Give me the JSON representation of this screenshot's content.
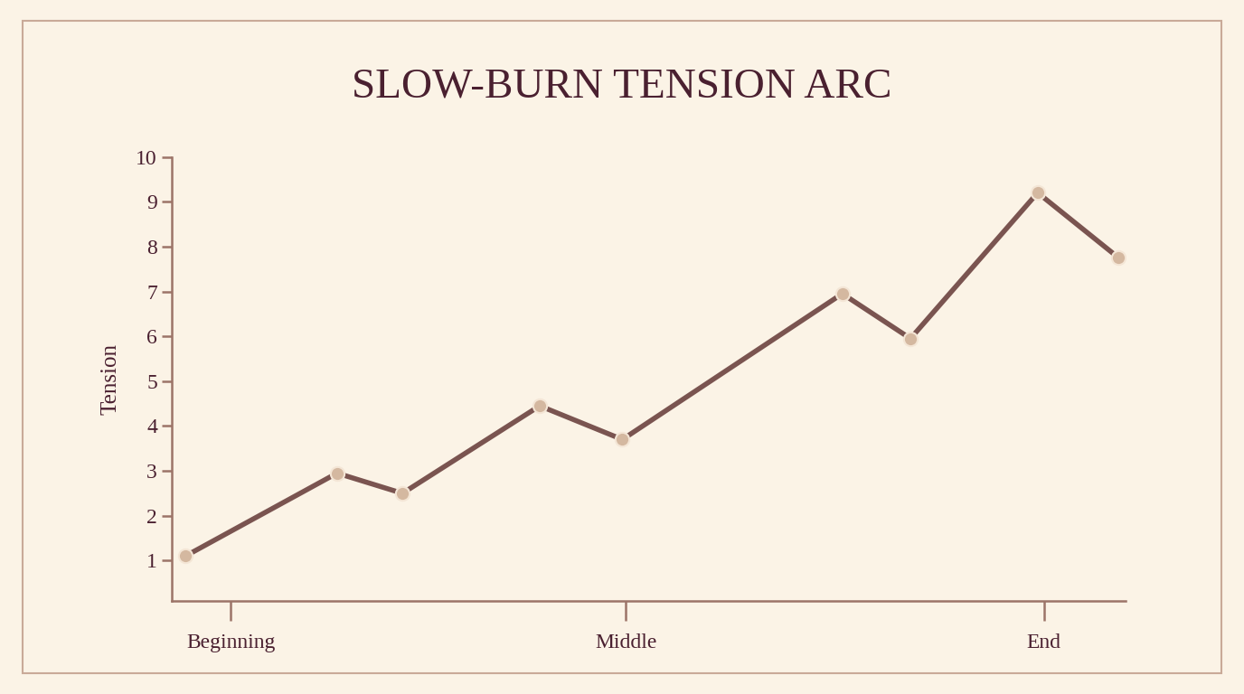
{
  "chart_data": {
    "type": "line",
    "title": "SLOW-BURN TENSION ARC",
    "y_label": "Tension",
    "x": [
      0.15,
      1.82,
      2.54,
      4.05,
      4.96,
      7.38,
      8.13,
      9.53,
      10.42
    ],
    "values": [
      1.1,
      2.95,
      2.5,
      4.45,
      3.7,
      6.95,
      5.95,
      9.2,
      7.75
    ],
    "color": "#7a5450",
    "marker": "circle",
    "line_style": "solid",
    "xlim": [
      0,
      10.5
    ],
    "xticks": [
      {
        "value": 0.65,
        "label": "Beginning"
      },
      {
        "value": 5,
        "label": "Middle"
      },
      {
        "value": 9.6,
        "label": "End"
      }
    ],
    "ylim": [
      0.1,
      10
    ],
    "yticks": [
      1,
      2,
      3,
      4,
      5,
      6,
      7,
      8,
      9,
      10
    ],
    "grid": false
  }
}
